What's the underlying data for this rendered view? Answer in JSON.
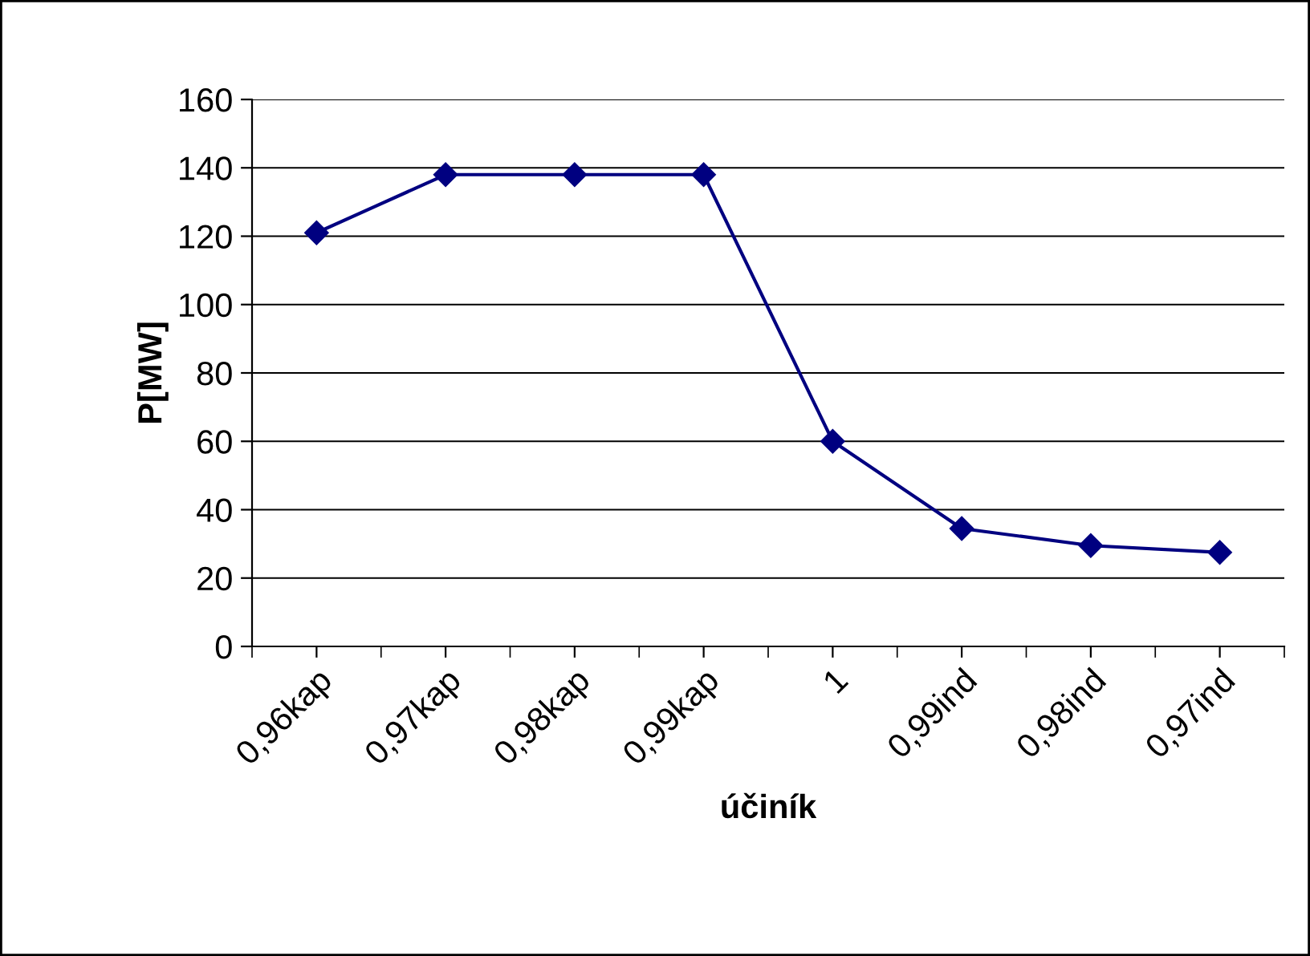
{
  "chart_data": {
    "type": "line",
    "xlabel": "účiník",
    "ylabel": "P[MW]",
    "categories": [
      "0,96kap",
      "0,97kap",
      "0,98kap",
      "0,99kap",
      "1",
      "0,99ind",
      "0,98ind",
      "0,97ind"
    ],
    "series": [
      {
        "color": "#000080",
        "values": [
          121,
          138,
          138,
          138,
          60,
          34.5,
          29.5,
          27.5
        ]
      }
    ],
    "ylim": [
      0,
      160
    ],
    "yticks": [
      0,
      20,
      40,
      60,
      80,
      100,
      120,
      140,
      160
    ],
    "grid": "y",
    "marker": "diamond",
    "line_style": "solid",
    "legend": false
  }
}
